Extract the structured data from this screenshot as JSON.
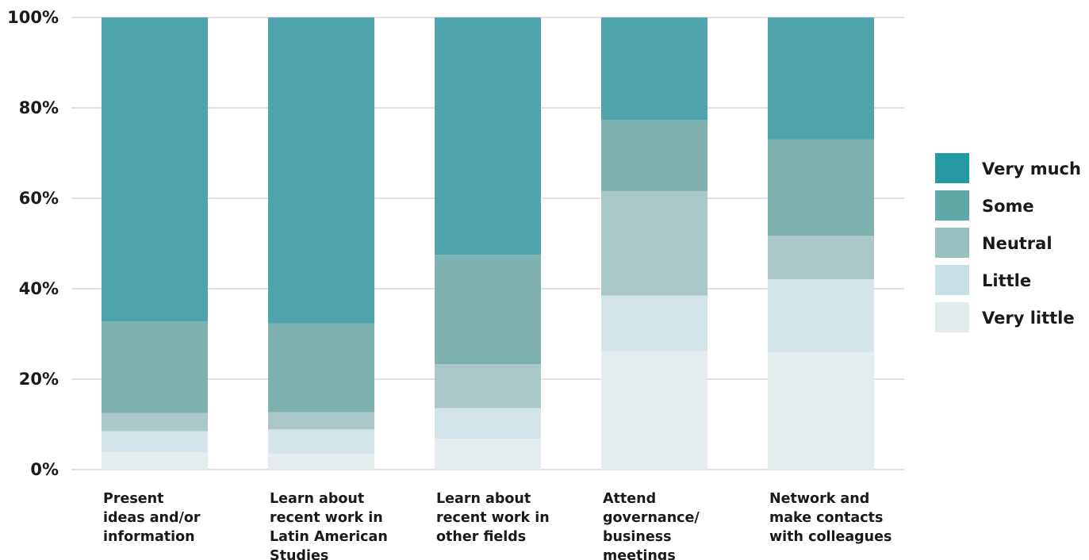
{
  "chart_data": {
    "type": "bar",
    "stacked": true,
    "normalized": true,
    "categories": [
      [
        "Present",
        "ideas and/or",
        "information"
      ],
      [
        "Learn about",
        "recent work in",
        "Latin American",
        "Studies"
      ],
      [
        "Learn about",
        "recent work in",
        "other fields"
      ],
      [
        "Attend",
        "governance/",
        "business",
        "meetings"
      ],
      [
        "Network and",
        "make contacts",
        "with colleagues"
      ]
    ],
    "series": [
      {
        "name": "Very little",
        "color": "#e4ecee",
        "values": [
          3.8,
          3.6,
          6.8,
          26.2,
          26.0
        ]
      },
      {
        "name": "Little",
        "color": "#d5e4e8",
        "values": [
          4.7,
          5.3,
          6.8,
          12.3,
          16.1
        ]
      },
      {
        "name": "Neutral",
        "color": "#aac8c7",
        "values": [
          4.0,
          3.8,
          9.7,
          23.1,
          9.6
        ]
      },
      {
        "name": "Some",
        "color": "#7eb0ae",
        "values": [
          20.3,
          19.6,
          24.2,
          15.7,
          21.3
        ]
      },
      {
        "name": "Very much",
        "color": "#50a4ae",
        "values": [
          67.2,
          67.7,
          52.5,
          22.7,
          27.0
        ]
      }
    ],
    "legend": [
      {
        "name": "Very much",
        "color": "#2499a1"
      },
      {
        "name": "Some",
        "color": "#5fa8a5"
      },
      {
        "name": "Neutral",
        "color": "#97c0be"
      },
      {
        "name": "Little",
        "color": "#c7e0e3"
      },
      {
        "name": "Very little",
        "color": "#e2eaec"
      }
    ],
    "legend_position": "right",
    "y_ticks": [
      "0%",
      "20%",
      "40%",
      "60%",
      "80%",
      "100%"
    ],
    "ylim": [
      0,
      100
    ],
    "grid": true,
    "gridline_color": "#d9d9d9"
  }
}
